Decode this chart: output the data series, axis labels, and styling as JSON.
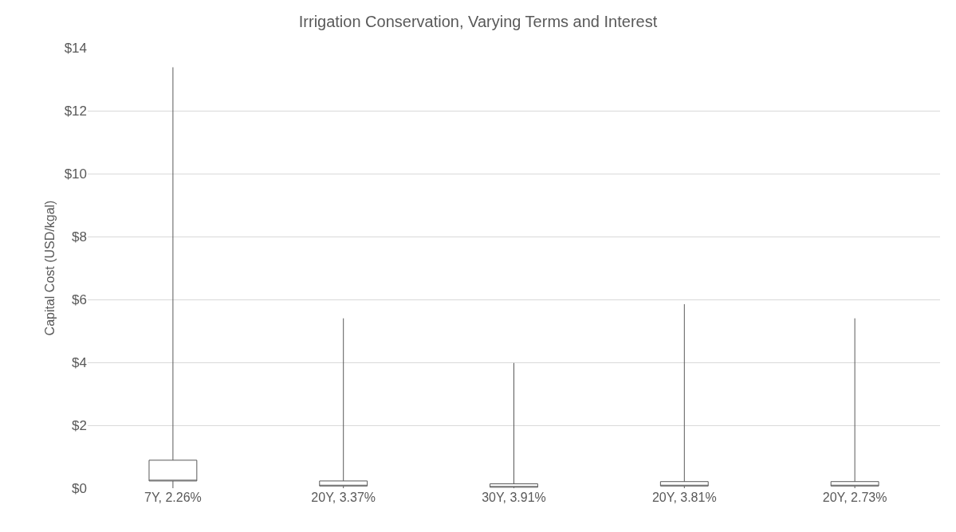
{
  "chart_data": {
    "type": "box",
    "title": "Irrigation Conservation, Varying Terms and Interest",
    "ylabel": "Capital Cost (USD/kgal)",
    "categories": [
      "7Y, 2.26%",
      "20Y, 3.37%",
      "30Y, 3.91%",
      "20Y, 3.81%",
      "20Y, 2.73%"
    ],
    "color": "#595959",
    "boxes": [
      {
        "low": 0.0,
        "q1": 0.23,
        "median": 0.23,
        "q3": 0.89,
        "high": 13.38
      },
      {
        "low": 0.0,
        "q1": 0.07,
        "median": 0.07,
        "q3": 0.23,
        "high": 5.4
      },
      {
        "low": 0.0,
        "q1": 0.03,
        "median": 0.03,
        "q3": 0.14,
        "high": 3.98
      },
      {
        "low": 0.0,
        "q1": 0.07,
        "median": 0.07,
        "q3": 0.21,
        "high": 5.85
      },
      {
        "low": 0.0,
        "q1": 0.07,
        "median": 0.07,
        "q3": 0.21,
        "high": 5.4
      }
    ],
    "ylim": [
      0,
      14
    ],
    "yticks": [
      {
        "value": 0,
        "label": "$0"
      },
      {
        "value": 2,
        "label": "$2"
      },
      {
        "value": 4,
        "label": "$4"
      },
      {
        "value": 6,
        "label": "$6"
      },
      {
        "value": 8,
        "label": "$8"
      },
      {
        "value": 10,
        "label": "$10"
      },
      {
        "value": 12,
        "label": "$12"
      },
      {
        "value": 14,
        "label": "$14"
      }
    ],
    "grid": "y"
  }
}
